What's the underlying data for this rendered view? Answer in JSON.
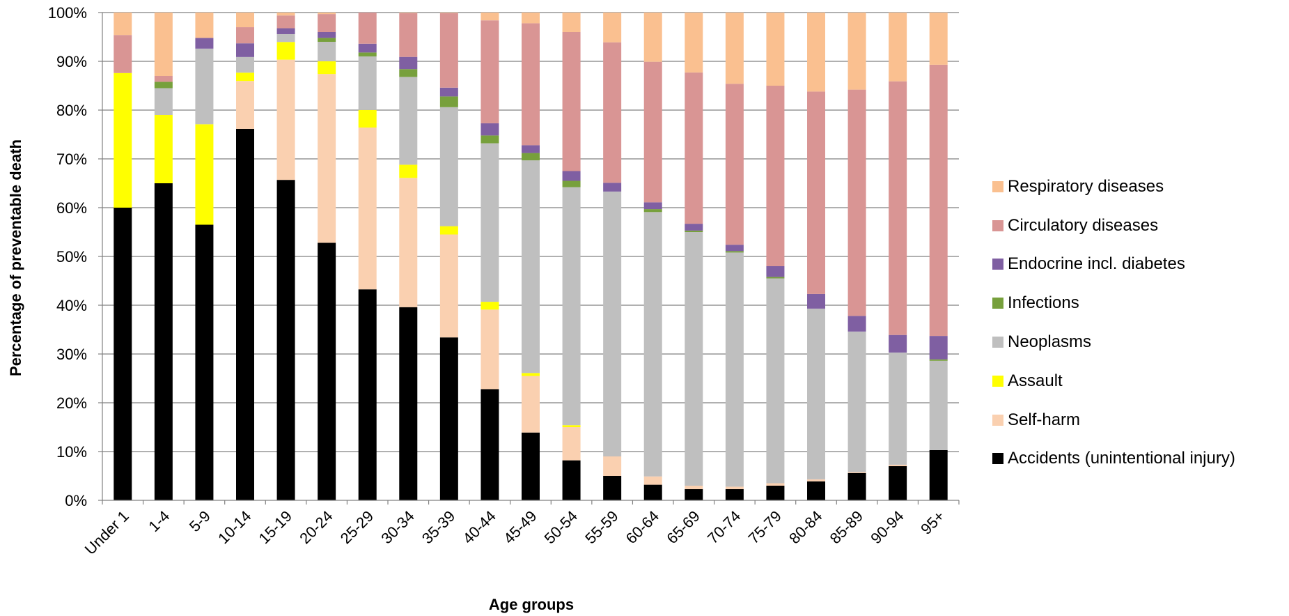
{
  "chart_data": {
    "type": "bar",
    "stacked": "percent",
    "xlabel": "Age groups",
    "ylabel": "Percentage of preventable death",
    "ylim": [
      0,
      100
    ],
    "y_ticks": [
      "0%",
      "10%",
      "20%",
      "30%",
      "40%",
      "50%",
      "60%",
      "70%",
      "80%",
      "90%",
      "100%"
    ],
    "grid": "horizontal",
    "legend_position": "right",
    "categories": [
      "Under 1",
      "1-4",
      "5-9",
      "10-14",
      "15-19",
      "20-24",
      "25-29",
      "30-34",
      "35-39",
      "40-44",
      "45-49",
      "50-54",
      "55-59",
      "60-64",
      "65-69",
      "70-74",
      "75-79",
      "80-84",
      "85-89",
      "90-94",
      "95+"
    ],
    "series": [
      {
        "name": "Accidents (unintentional injury)",
        "color": "#000000",
        "values": [
          60,
          65,
          56.5,
          76,
          65.3,
          52.8,
          43.3,
          39.6,
          33.4,
          22.8,
          13.9,
          8.2,
          5,
          3.2,
          2.3,
          2.3,
          3,
          3.9,
          5.6,
          7,
          10.3
        ]
      },
      {
        "name": "Self-harm",
        "color": "#FAD0B0",
        "values": [
          0,
          0,
          0,
          9.8,
          24.5,
          34.6,
          33.2,
          26.5,
          21.1,
          16.3,
          11.6,
          6.8,
          4,
          1.7,
          0.7,
          0.5,
          0.5,
          0.4,
          0.2,
          0.3,
          0
        ]
      },
      {
        "name": "Assault",
        "color": "#FFFF00",
        "values": [
          27.6,
          14,
          20.6,
          1.7,
          3.6,
          2.6,
          3.6,
          2.7,
          1.7,
          1.6,
          0.6,
          0.4,
          0,
          0,
          0,
          0,
          0,
          0,
          0,
          0,
          0
        ]
      },
      {
        "name": "Neoplasms",
        "color": "#BFBFBF",
        "values": [
          0,
          5.5,
          15.5,
          3.2,
          1.6,
          4,
          11,
          18,
          24.4,
          32.5,
          43.6,
          48.8,
          54.3,
          54.2,
          52,
          48,
          42,
          35,
          28.8,
          23,
          18.3
        ]
      },
      {
        "name": "Infections",
        "color": "#77A03C",
        "values": [
          0,
          1.3,
          0,
          0,
          0,
          0.8,
          0.8,
          1.6,
          2.2,
          1.6,
          1.5,
          1.3,
          0,
          0.6,
          0.3,
          0.3,
          0.3,
          0,
          0,
          0,
          0.3
        ]
      },
      {
        "name": "Endocrine incl. diabetes",
        "color": "#7F5FA2",
        "values": [
          0,
          0,
          2.2,
          2.8,
          1.2,
          1.2,
          1.8,
          2.5,
          1.8,
          2.5,
          1.6,
          2,
          1.8,
          1.4,
          1.4,
          1.3,
          2.2,
          3,
          3.2,
          3.6,
          4.8
        ]
      },
      {
        "name": "Circulatory diseases",
        "color": "#D99594",
        "values": [
          7.8,
          1.2,
          0,
          3.3,
          2.6,
          3.7,
          6.4,
          9,
          15.3,
          21.1,
          25,
          28.5,
          28.8,
          28.8,
          31,
          33,
          37,
          41.5,
          46.4,
          52,
          55.6
        ]
      },
      {
        "name": "Respiratory diseases",
        "color": "#FAC090",
        "values": [
          4.6,
          13,
          5.2,
          3,
          0.6,
          0.3,
          0,
          0.1,
          0.1,
          1.6,
          2.2,
          4,
          6.1,
          10.1,
          12.3,
          14.6,
          15,
          16.2,
          15.8,
          14.1,
          10.7
        ]
      }
    ]
  }
}
